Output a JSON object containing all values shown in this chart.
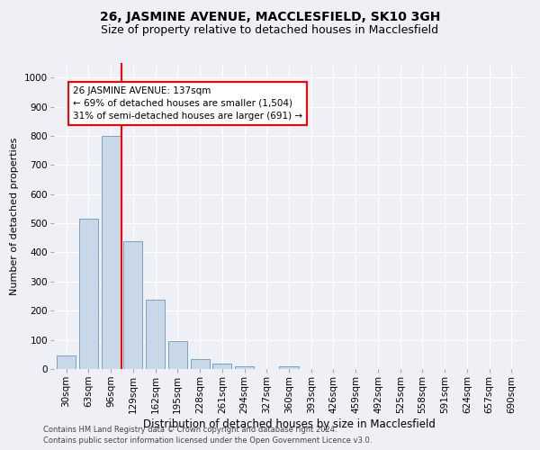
{
  "title": "26, JASMINE AVENUE, MACCLESFIELD, SK10 3GH",
  "subtitle": "Size of property relative to detached houses in Macclesfield",
  "xlabel": "Distribution of detached houses by size in Macclesfield",
  "ylabel": "Number of detached properties",
  "footnote1": "Contains HM Land Registry data © Crown copyright and database right 2024.",
  "footnote2": "Contains public sector information licensed under the Open Government Licence v3.0.",
  "categories": [
    "30sqm",
    "63sqm",
    "96sqm",
    "129sqm",
    "162sqm",
    "195sqm",
    "228sqm",
    "261sqm",
    "294sqm",
    "327sqm",
    "360sqm",
    "393sqm",
    "426sqm",
    "459sqm",
    "492sqm",
    "525sqm",
    "558sqm",
    "591sqm",
    "624sqm",
    "657sqm",
    "690sqm"
  ],
  "values": [
    47,
    517,
    800,
    440,
    237,
    97,
    35,
    18,
    10,
    0,
    8,
    0,
    0,
    0,
    0,
    0,
    0,
    0,
    0,
    0,
    0
  ],
  "bar_color": "#c8d8e8",
  "bar_edge_color": "#6699bb",
  "property_line_color": "red",
  "annotation_text": "26 JASMINE AVENUE: 137sqm\n← 69% of detached houses are smaller (1,504)\n31% of semi-detached houses are larger (691) →",
  "annotation_box_color": "white",
  "annotation_box_edge": "red",
  "ylim": [
    0,
    1050
  ],
  "yticks": [
    0,
    100,
    200,
    300,
    400,
    500,
    600,
    700,
    800,
    900,
    1000
  ],
  "bg_color": "#eef0f5",
  "title_fontsize": 10,
  "subtitle_fontsize": 9,
  "xlabel_fontsize": 8.5,
  "ylabel_fontsize": 8,
  "tick_fontsize": 7.5,
  "annotation_fontsize": 7.5,
  "footnote_fontsize": 6
}
